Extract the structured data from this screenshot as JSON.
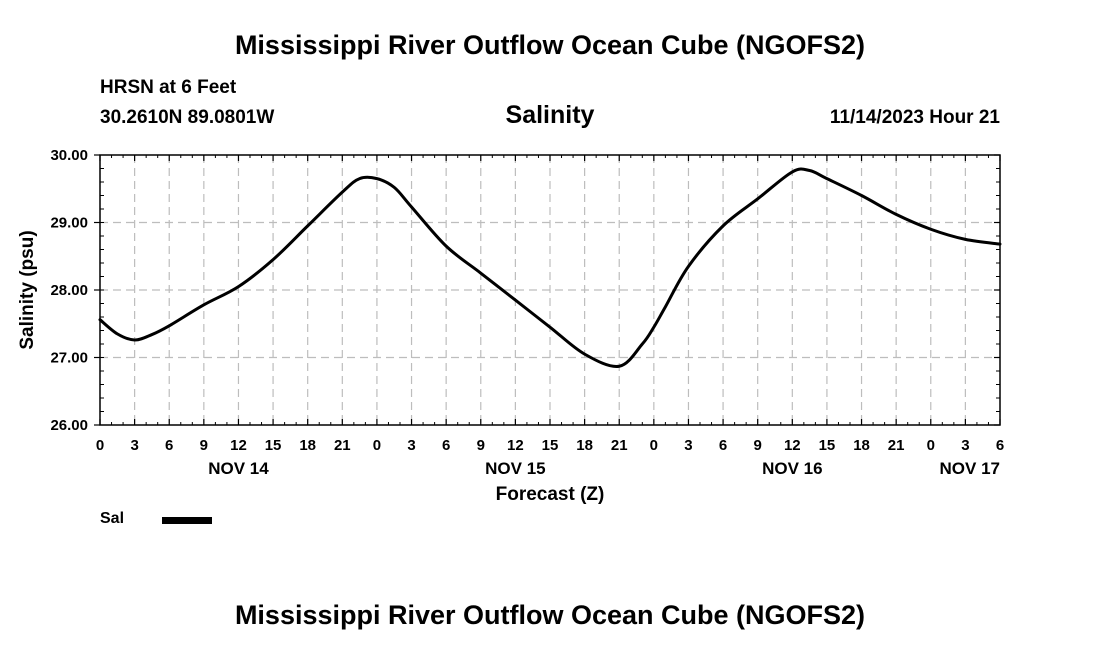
{
  "header": {
    "title": "Mississippi River Outflow Ocean Cube (NGOFS2)",
    "station": "HRSN at 6 Feet",
    "coords": "30.2610N  89.0801W",
    "datetime": "11/14/2023 Hour 21"
  },
  "footer": {
    "title": "Mississippi River Outflow Ocean Cube (NGOFS2)"
  },
  "legend": {
    "label": "Sal"
  },
  "chart_data": {
    "type": "line",
    "title": "Salinity",
    "xlabel": "Forecast (Z)",
    "ylabel": "Salinity (psu)",
    "ylim": [
      26.0,
      30.0
    ],
    "yticks": [
      "26.00",
      "27.00",
      "28.00",
      "29.00",
      "30.00"
    ],
    "xlim_hours": [
      0,
      78
    ],
    "xtick_labels": [
      "0",
      "3",
      "6",
      "9",
      "12",
      "15",
      "18",
      "21",
      "0",
      "3",
      "6",
      "9",
      "12",
      "15",
      "18",
      "21",
      "0",
      "3",
      "6",
      "9",
      "12",
      "15",
      "18",
      "21",
      "0",
      "3",
      "6"
    ],
    "day_labels": [
      {
        "text": "NOV 14",
        "hour": 12
      },
      {
        "text": "NOV 15",
        "hour": 36
      },
      {
        "text": "NOV 16",
        "hour": 60
      },
      {
        "text": "NOV 17",
        "hour": 78
      }
    ],
    "grid": true,
    "series": [
      {
        "name": "Sal",
        "color": "#000000",
        "x": [
          0,
          1.5,
          3,
          4.5,
          6,
          9,
          12,
          15,
          18,
          21,
          22.5,
          24,
          25.5,
          27,
          30,
          33,
          36,
          39,
          42,
          45,
          47,
          48,
          49,
          51,
          54,
          57,
          60,
          61.5,
          63,
          66,
          69,
          72,
          75,
          78
        ],
        "y": [
          27.56,
          27.35,
          27.26,
          27.34,
          27.47,
          27.78,
          28.05,
          28.45,
          28.95,
          29.45,
          29.65,
          29.65,
          29.52,
          29.23,
          28.65,
          28.25,
          27.85,
          27.45,
          27.05,
          26.87,
          27.2,
          27.45,
          27.75,
          28.35,
          28.95,
          29.35,
          29.75,
          29.77,
          29.65,
          29.4,
          29.12,
          28.9,
          28.75,
          28.68
        ]
      }
    ]
  }
}
